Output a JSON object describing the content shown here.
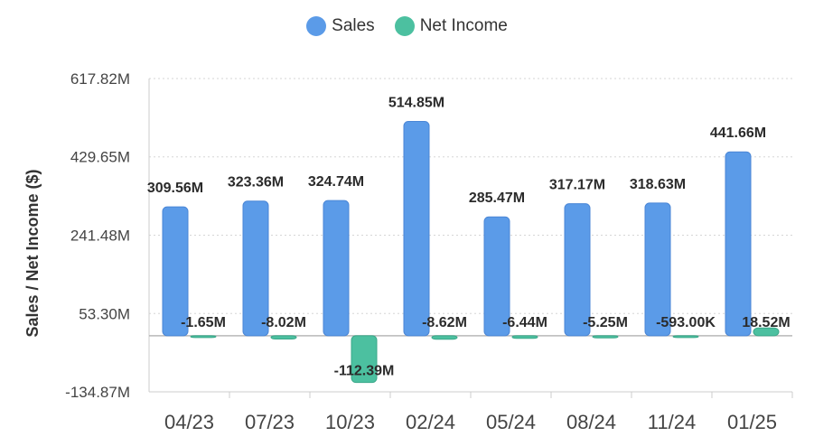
{
  "legend": [
    {
      "name": "Sales",
      "color": "#5b9be8"
    },
    {
      "name": "Net Income",
      "color": "#4cc0a0"
    }
  ],
  "chart_data": {
    "type": "bar",
    "title": "",
    "xlabel": "",
    "ylabel": "Sales / Net Income ($)",
    "ylim": [
      -134.87,
      617.82
    ],
    "yticks": [
      -134.87,
      53.3,
      241.48,
      429.65,
      617.82
    ],
    "ytick_labels": [
      "-134.87M",
      "53.30M",
      "241.48M",
      "429.65M",
      "617.82M"
    ],
    "categories": [
      "04/23",
      "07/23",
      "10/23",
      "02/24",
      "05/24",
      "08/24",
      "11/24",
      "01/25"
    ],
    "legend_position": "top",
    "grid": "horizontal dotted",
    "series": [
      {
        "name": "Sales",
        "color": "#5b9be8",
        "values": [
          309.56,
          323.36,
          324.74,
          514.85,
          285.47,
          317.17,
          318.63,
          441.66
        ],
        "labels": [
          "309.56M",
          "323.36M",
          "324.74M",
          "514.85M",
          "285.47M",
          "317.17M",
          "318.63M",
          "441.66M"
        ]
      },
      {
        "name": "Net Income",
        "color": "#4cc0a0",
        "values": [
          -1.65,
          -8.02,
          -112.39,
          -8.62,
          -6.44,
          -5.25,
          -0.593,
          18.52
        ],
        "labels": [
          "-1.65M",
          "-8.02M",
          "-112.39M",
          "-8.62M",
          "-6.44M",
          "-5.25M",
          "-593.00K",
          "18.52M"
        ]
      }
    ]
  }
}
